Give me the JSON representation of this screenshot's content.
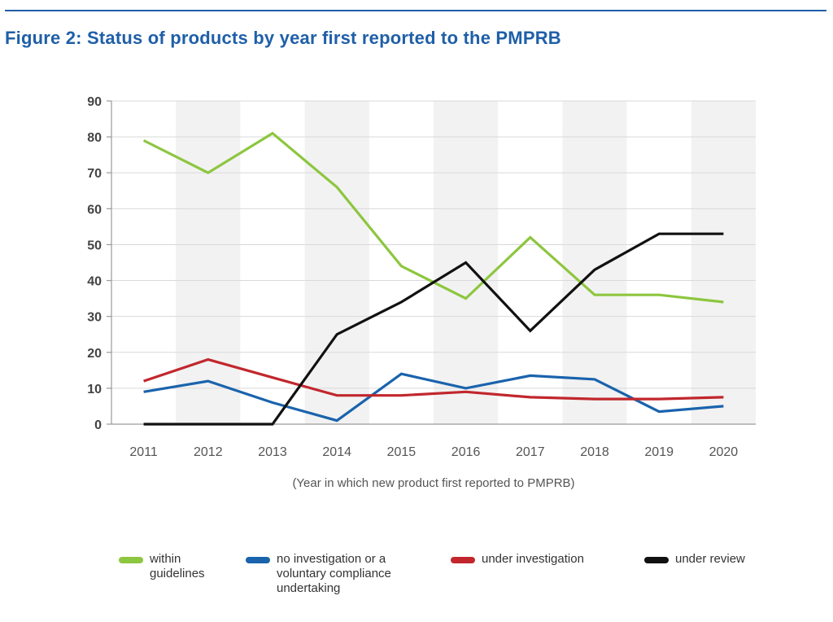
{
  "figure": {
    "title": "Figure 2: Status of products by year first reported to the PMPRB"
  },
  "chart_data": {
    "type": "line",
    "x": [
      "2011",
      "2012",
      "2013",
      "2014",
      "2015",
      "2016",
      "2017",
      "2018",
      "2019",
      "2020"
    ],
    "xlabel": "(Year in which new product first reported to PMPRB)",
    "ylabel": "",
    "ylim": [
      0,
      90
    ],
    "yticks": [
      "0",
      "10",
      "20",
      "30",
      "40",
      "50",
      "60",
      "70",
      "80",
      "90"
    ],
    "grid": true,
    "legend_position": "bottom",
    "series": [
      {
        "name": "within guidelines",
        "color": "#8dc63f",
        "values": [
          79,
          70,
          81,
          66,
          44,
          35,
          52,
          36,
          36,
          34
        ]
      },
      {
        "name": "no investigation or a voluntary compliance undertaking",
        "color": "#1a63ad",
        "values": [
          9,
          12,
          6,
          1,
          14,
          10,
          13.5,
          12.5,
          3.5,
          5
        ]
      },
      {
        "name": "under investigation",
        "color": "#c1272d",
        "values": [
          12,
          18,
          13,
          8,
          8,
          9,
          7.5,
          7,
          7,
          7.5
        ]
      },
      {
        "name": "under review",
        "color": "#111111",
        "values": [
          0,
          0,
          0,
          25,
          34,
          45,
          26,
          43,
          53,
          53
        ]
      }
    ]
  },
  "legend": {
    "items": [
      {
        "lines": [
          "within",
          "guidelines"
        ]
      },
      {
        "lines": [
          "no investigation or a",
          "voluntary compliance",
          "undertaking"
        ]
      },
      {
        "lines": [
          "under investigation"
        ]
      },
      {
        "lines": [
          "under review"
        ]
      }
    ]
  }
}
